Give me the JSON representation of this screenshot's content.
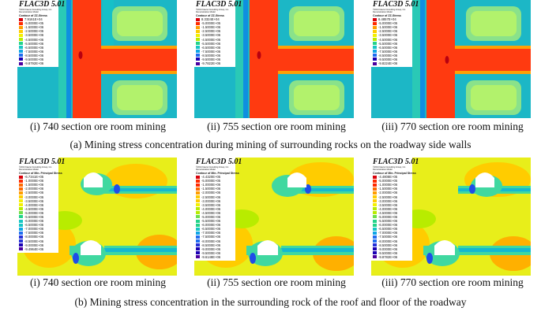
{
  "software": "FLAC3D 5.01",
  "organization_lines": [
    "©2014 Itasca Consulting Group, Inc.",
    "Demonstration Model"
  ],
  "row_a": {
    "contour_title": "Contour of ZZ-Stress",
    "panels": [
      {
        "caption": "(i) 740 section ore room mining",
        "legend": [
          "7.9161E+04",
          "-5.0000E+05",
          "-1.5000E+06",
          "-2.5000E+06",
          "-3.5000E+06",
          "-4.5000E+06",
          "-5.5000E+06",
          "-6.5000E+06",
          "-7.5000E+06",
          "-8.5000E+06",
          "-9.5000E+06",
          "-9.8792E+06"
        ]
      },
      {
        "caption": "(ii) 755 section ore room mining",
        "legend": [
          "8.3324E+04",
          "-5.0000E+05",
          "-1.5000E+06",
          "-2.5000E+06",
          "-3.5000E+06",
          "-4.5000E+06",
          "-5.5000E+06",
          "-6.5000E+06",
          "-7.5000E+06",
          "-8.5000E+06",
          "-9.5000E+06",
          "-9.7822E+06"
        ]
      },
      {
        "caption": "(iii) 770 section ore room mining",
        "legend": [
          "6.4857E+04",
          "-5.0000E+05",
          "-1.5000E+06",
          "-2.5000E+06",
          "-3.5000E+06",
          "-4.5000E+06",
          "-5.5000E+06",
          "-6.5000E+06",
          "-7.5000E+06",
          "-8.5000E+06",
          "-9.5000E+06",
          "-9.8224E+06"
        ]
      }
    ],
    "figure_caption": "(a) Mining stress concentration during mining of surrounding rocks on the roadway side walls"
  },
  "row_b": {
    "contour_title": "Contour of Min. Principal Stress",
    "panels": [
      {
        "caption": "(i) 740 section ore room mining",
        "legend": [
          "-6.7341E+05",
          "-1.0000E+06",
          "-1.5000E+06",
          "-2.0000E+06",
          "-2.5000E+06",
          "-3.0000E+06",
          "-3.5000E+06",
          "-4.0000E+06",
          "-4.5000E+06",
          "-5.0000E+06",
          "-5.5000E+06",
          "-6.0000E+06",
          "-6.5000E+06",
          "-7.0000E+06",
          "-7.5000E+06",
          "-8.0000E+06",
          "-8.5000E+06",
          "-9.0000E+06",
          "-9.4964E+06"
        ]
      },
      {
        "caption": "(ii) 755 section ore room mining",
        "legend": [
          "-4.4320E+05",
          "-5.0000E+05",
          "-1.0000E+06",
          "-1.5000E+06",
          "-2.0000E+06",
          "-2.5000E+06",
          "-3.0000E+06",
          "-3.5000E+06",
          "-4.0000E+06",
          "-4.5000E+06",
          "-5.0000E+06",
          "-5.5000E+06",
          "-6.0000E+06",
          "-6.5000E+06",
          "-7.0000E+06",
          "-7.5000E+06",
          "-8.0000E+06",
          "-8.5000E+06",
          "-9.0000E+06",
          "-9.5000E+06",
          "-9.6148E+06"
        ]
      },
      {
        "caption": "(iii) 770 section ore room mining",
        "legend": [
          "-4.4808E+05",
          "-5.0000E+05",
          "-1.0000E+06",
          "-1.5000E+06",
          "-2.0000E+06",
          "-2.5000E+06",
          "-3.0000E+06",
          "-3.5000E+06",
          "-4.0000E+06",
          "-4.5000E+06",
          "-5.0000E+06",
          "-5.5000E+06",
          "-6.0000E+06",
          "-6.5000E+06",
          "-7.0000E+06",
          "-7.5000E+06",
          "-8.0000E+06",
          "-8.5000E+06",
          "-9.0000E+06",
          "-9.5000E+06",
          "-9.8782E+06"
        ]
      }
    ],
    "figure_caption": "(b) Mining stress concentration in the surrounding rock of the roof and floor of the roadway"
  },
  "colormap": [
    "#d9000a",
    "#ff2a00",
    "#ff6a00",
    "#ff9d00",
    "#ffcc00",
    "#f4f000",
    "#b8ec00",
    "#6ee04a",
    "#23d38a",
    "#16c6c4",
    "#0fa6e6",
    "#1f6df0",
    "#2430d8",
    "#1a00b4",
    "#4b00a0"
  ]
}
